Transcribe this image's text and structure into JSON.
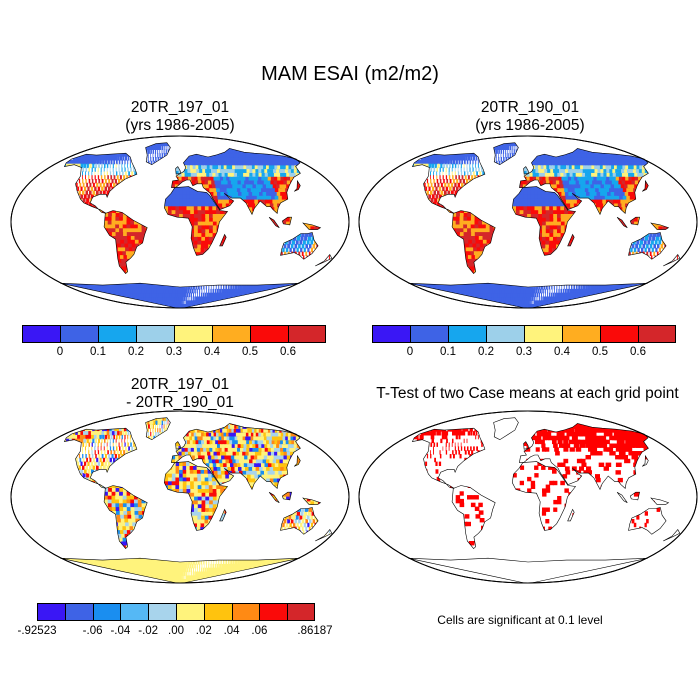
{
  "main_title": "MAM ESAI (m2/m2)",
  "panels": {
    "top_left": {
      "title_line1": "20TR_197_01",
      "title_line2": "(yrs 1986-2005)"
    },
    "top_right": {
      "title_line1": "20TR_190_01",
      "title_line2": "(yrs 1986-2005)"
    },
    "bottom_left": {
      "title_line1": "20TR_197_01",
      "title_line2": "- 20TR_190_01"
    },
    "bottom_right": {
      "title": "T-Test of two Case means at each grid point",
      "note": "Cells are significant at 0.1 level"
    }
  },
  "colorbar_top": {
    "colors": [
      "#3a17f5",
      "#3e63e6",
      "#16a6ee",
      "#9dd0ea",
      "#fff37c",
      "#ffad20",
      "#fa0a09",
      "#d4262a"
    ],
    "labels": [
      "0",
      "0.1",
      "0.2",
      "0.3",
      "0.4",
      "0.5",
      "0.6"
    ]
  },
  "colorbar_diff": {
    "colors": [
      "#3a17f5",
      "#3e63e6",
      "#1a8ef0",
      "#55b8f5",
      "#a8d4ec",
      "#fff37c",
      "#ffc30e",
      "#ff8a14",
      "#fa0a09",
      "#d4262a"
    ],
    "labels": [
      "-.92523",
      "-.06",
      "-.04",
      "-.02",
      ".00",
      ".02",
      ".04",
      ".06",
      ".86187"
    ]
  },
  "colors": {
    "ocean": "#ffffff",
    "significant": "#ff0000"
  }
}
